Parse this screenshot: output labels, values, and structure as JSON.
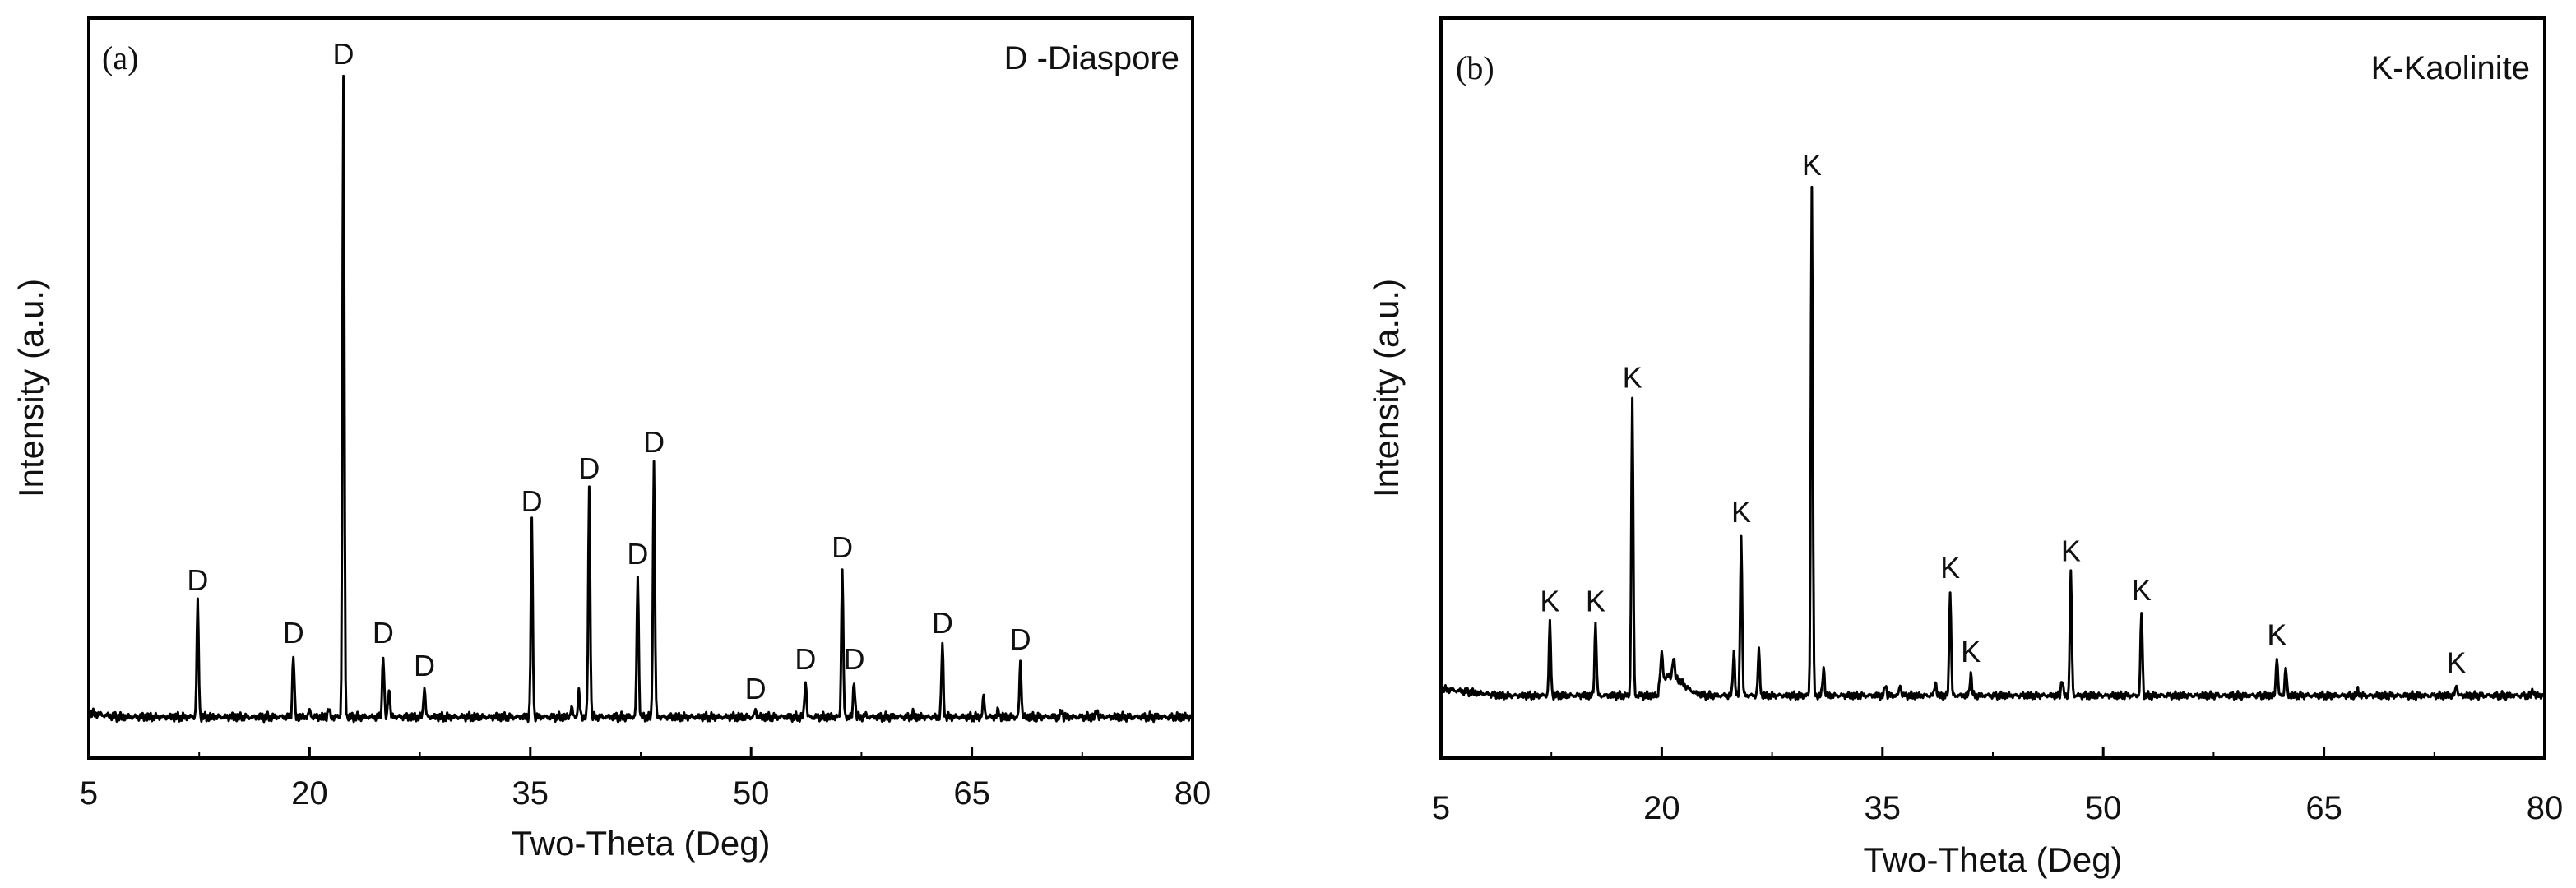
{
  "chart_data": [
    {
      "type": "line",
      "panel_label": "(a)",
      "legend": "D -Diaspore",
      "xlabel": "Two-Theta (Deg)",
      "ylabel": "Intensity (a.u.)",
      "xlim": [
        5,
        80
      ],
      "ylim": [
        0,
        100
      ],
      "xticks": [
        5,
        20,
        35,
        50,
        65,
        80
      ],
      "baseline": 2.5,
      "series": [
        {
          "name": "Diaspore pattern",
          "peaks": [
            {
              "x": 12.4,
              "y": 20,
              "label": "D"
            },
            {
              "x": 18.9,
              "y": 12,
              "label": "D"
            },
            {
              "x": 22.3,
              "y": 100,
              "label": "D"
            },
            {
              "x": 25.0,
              "y": 12,
              "label": "D"
            },
            {
              "x": 27.8,
              "y": 7,
              "label": "D"
            },
            {
              "x": 35.1,
              "y": 32,
              "label": "D"
            },
            {
              "x": 39.0,
              "y": 37,
              "label": "D"
            },
            {
              "x": 42.3,
              "y": 24,
              "label": "D"
            },
            {
              "x": 43.4,
              "y": 41,
              "label": "D"
            },
            {
              "x": 50.3,
              "y": 3.5,
              "label": "D"
            },
            {
              "x": 53.7,
              "y": 8,
              "label": "D"
            },
            {
              "x": 56.2,
              "y": 25,
              "label": "D"
            },
            {
              "x": 57.0,
              "y": 8,
              "label": "D"
            },
            {
              "x": 63.0,
              "y": 13.5,
              "label": "D"
            },
            {
              "x": 68.3,
              "y": 11,
              "label": "D"
            },
            {
              "x": 20.0,
              "y": 3.5,
              "label": ""
            },
            {
              "x": 21.3,
              "y": 3.8,
              "label": ""
            },
            {
              "x": 25.4,
              "y": 7,
              "label": ""
            },
            {
              "x": 38.3,
              "y": 6.5,
              "label": ""
            },
            {
              "x": 37.8,
              "y": 4,
              "label": ""
            },
            {
              "x": 65.8,
              "y": 5.5,
              "label": ""
            },
            {
              "x": 66.8,
              "y": 3.5,
              "label": ""
            },
            {
              "x": 71.1,
              "y": 3.5,
              "label": ""
            },
            {
              "x": 73.5,
              "y": 3.5,
              "label": ""
            },
            {
              "x": 61.0,
              "y": 3,
              "label": ""
            },
            {
              "x": 57.8,
              "y": 2.8,
              "label": ""
            }
          ]
        }
      ]
    },
    {
      "type": "line",
      "panel_label": "(b)",
      "legend": "K-Kaolinite",
      "xlabel": "Two-Theta (Deg)",
      "ylabel": "Intensity (a.u.)",
      "xlim": [
        5,
        80
      ],
      "ylim": [
        0,
        100
      ],
      "xticks": [
        5,
        20,
        35,
        50,
        65,
        80
      ],
      "baseline": 5,
      "series": [
        {
          "name": "Kaolinite pattern",
          "peaks": [
            {
              "x": 12.4,
              "y": 18,
              "label": "K"
            },
            {
              "x": 15.5,
              "y": 18,
              "label": "K"
            },
            {
              "x": 18.0,
              "y": 58,
              "label": "K"
            },
            {
              "x": 25.4,
              "y": 34,
              "label": "K"
            },
            {
              "x": 30.2,
              "y": 96,
              "label": "K"
            },
            {
              "x": 39.6,
              "y": 24,
              "label": "K"
            },
            {
              "x": 41.0,
              "y": 9,
              "label": "K"
            },
            {
              "x": 47.8,
              "y": 27,
              "label": "K"
            },
            {
              "x": 52.6,
              "y": 20,
              "label": "K"
            },
            {
              "x": 61.8,
              "y": 12,
              "label": "K"
            },
            {
              "x": 74.0,
              "y": 7,
              "label": "K"
            },
            {
              "x": 20.0,
              "y": 10,
              "label": ""
            },
            {
              "x": 20.8,
              "y": 8.5,
              "label": ""
            },
            {
              "x": 24.9,
              "y": 13,
              "label": ""
            },
            {
              "x": 26.6,
              "y": 13,
              "label": ""
            },
            {
              "x": 31.0,
              "y": 10,
              "label": ""
            },
            {
              "x": 35.2,
              "y": 7,
              "label": ""
            },
            {
              "x": 36.2,
              "y": 7,
              "label": ""
            },
            {
              "x": 38.6,
              "y": 7.5,
              "label": ""
            },
            {
              "x": 47.2,
              "y": 8,
              "label": ""
            },
            {
              "x": 62.4,
              "y": 10,
              "label": ""
            },
            {
              "x": 67.3,
              "y": 6,
              "label": ""
            },
            {
              "x": 79.2,
              "y": 6,
              "label": ""
            }
          ]
        }
      ]
    }
  ]
}
